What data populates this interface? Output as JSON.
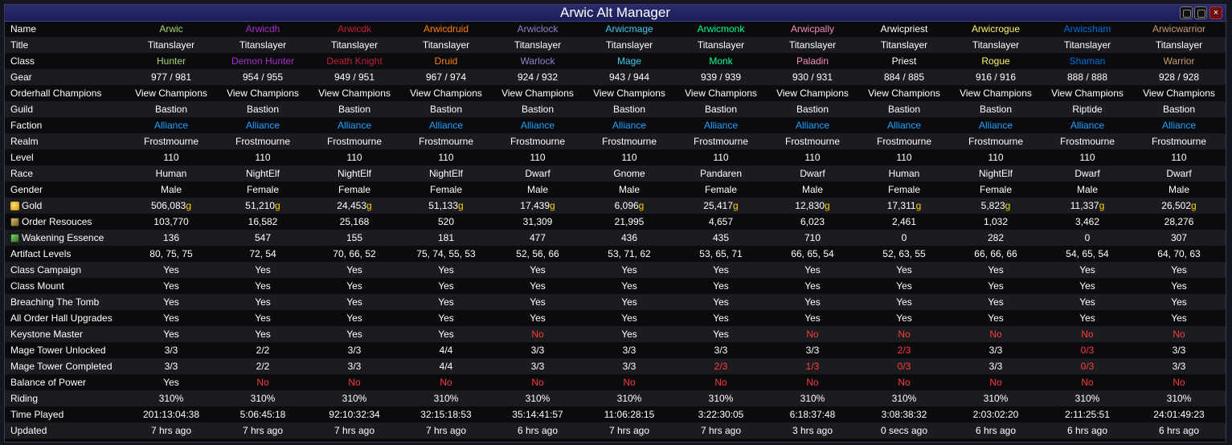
{
  "window": {
    "title": "Arwic Alt Manager",
    "close_glyph": "×"
  },
  "colors": {
    "hunter": "#abd473",
    "demonhunter": "#a330c9",
    "deathknight": "#c41f3b",
    "druid": "#ff7d0a",
    "warlock": "#9482c9",
    "mage": "#40c7eb",
    "monk": "#00ff96",
    "paladin": "#f58cba",
    "priest": "#ffffff",
    "rogue": "#fff569",
    "shaman": "#0070de",
    "warrior": "#c79c6e",
    "alliance": "#1ea2ff",
    "no": "#ff3d3d",
    "gold_suffix": "#ffd100"
  },
  "characters": [
    {
      "name": "Arwic",
      "title": "Titanslayer",
      "class": "Hunter",
      "color": "#abd473",
      "gear": "977 / 981",
      "champions": "View Champions",
      "guild": "Bastion",
      "faction": "Alliance",
      "realm": "Frostmourne",
      "level": "110",
      "race": "Human",
      "gender": "Male",
      "gold": "506,083",
      "order": "103,770",
      "essence": "136",
      "artifact": "80, 75, 75",
      "campaign": "Yes",
      "mount": "Yes",
      "tomb": "Yes",
      "upgrades": "Yes",
      "keystone": "Yes",
      "tower_unlocked": "3/3",
      "tower_completed": "3/3",
      "balance": "Yes",
      "riding": "310%",
      "played": "201:13:04:38",
      "updated": "7 hrs ago"
    },
    {
      "name": "Arwicdh",
      "title": "Titanslayer",
      "class": "Demon Hunter",
      "color": "#a330c9",
      "gear": "954 / 955",
      "champions": "View Champions",
      "guild": "Bastion",
      "faction": "Alliance",
      "realm": "Frostmourne",
      "level": "110",
      "race": "NightElf",
      "gender": "Female",
      "gold": "51,210",
      "order": "16,582",
      "essence": "547",
      "artifact": "72, 54",
      "campaign": "Yes",
      "mount": "Yes",
      "tomb": "Yes",
      "upgrades": "Yes",
      "keystone": "Yes",
      "tower_unlocked": "2/2",
      "tower_completed": "2/2",
      "balance": "No",
      "riding": "310%",
      "played": "5:06:45:18",
      "updated": "7 hrs ago"
    },
    {
      "name": "Arwicdk",
      "title": "Titanslayer",
      "class": "Death Knight",
      "color": "#c41f3b",
      "gear": "949 / 951",
      "champions": "View Champions",
      "guild": "Bastion",
      "faction": "Alliance",
      "realm": "Frostmourne",
      "level": "110",
      "race": "NightElf",
      "gender": "Female",
      "gold": "24,453",
      "order": "25,168",
      "essence": "155",
      "artifact": "70, 66, 52",
      "campaign": "Yes",
      "mount": "Yes",
      "tomb": "Yes",
      "upgrades": "Yes",
      "keystone": "Yes",
      "tower_unlocked": "3/3",
      "tower_completed": "3/3",
      "balance": "No",
      "riding": "310%",
      "played": "92:10:32:34",
      "updated": "7 hrs ago"
    },
    {
      "name": "Arwicdruid",
      "title": "Titanslayer",
      "class": "Druid",
      "color": "#ff7d0a",
      "gear": "967 / 974",
      "champions": "View Champions",
      "guild": "Bastion",
      "faction": "Alliance",
      "realm": "Frostmourne",
      "level": "110",
      "race": "NightElf",
      "gender": "Female",
      "gold": "51,133",
      "order": "520",
      "essence": "181",
      "artifact": "75, 74, 55, 53",
      "campaign": "Yes",
      "mount": "Yes",
      "tomb": "Yes",
      "upgrades": "Yes",
      "keystone": "Yes",
      "tower_unlocked": "4/4",
      "tower_completed": "4/4",
      "balance": "No",
      "riding": "310%",
      "played": "32:15:18:53",
      "updated": "7 hrs ago"
    },
    {
      "name": "Arwiclock",
      "title": "Titanslayer",
      "class": "Warlock",
      "color": "#9482c9",
      "gear": "924 / 932",
      "champions": "View Champions",
      "guild": "Bastion",
      "faction": "Alliance",
      "realm": "Frostmourne",
      "level": "110",
      "race": "Dwarf",
      "gender": "Male",
      "gold": "17,439",
      "order": "31,309",
      "essence": "477",
      "artifact": "52, 56, 66",
      "campaign": "Yes",
      "mount": "Yes",
      "tomb": "Yes",
      "upgrades": "Yes",
      "keystone": "No",
      "tower_unlocked": "3/3",
      "tower_completed": "3/3",
      "balance": "No",
      "riding": "310%",
      "played": "35:14:41:57",
      "updated": "6 hrs ago"
    },
    {
      "name": "Arwicmage",
      "title": "Titanslayer",
      "class": "Mage",
      "color": "#40c7eb",
      "gear": "943 / 944",
      "champions": "View Champions",
      "guild": "Bastion",
      "faction": "Alliance",
      "realm": "Frostmourne",
      "level": "110",
      "race": "Gnome",
      "gender": "Male",
      "gold": "6,096",
      "order": "21,995",
      "essence": "436",
      "artifact": "53, 71, 62",
      "campaign": "Yes",
      "mount": "Yes",
      "tomb": "Yes",
      "upgrades": "Yes",
      "keystone": "Yes",
      "tower_unlocked": "3/3",
      "tower_completed": "3/3",
      "balance": "No",
      "riding": "310%",
      "played": "11:06:28:15",
      "updated": "7 hrs ago"
    },
    {
      "name": "Arwicmonk",
      "title": "Titanslayer",
      "class": "Monk",
      "color": "#00ff96",
      "gear": "939 / 939",
      "champions": "View Champions",
      "guild": "Bastion",
      "faction": "Alliance",
      "realm": "Frostmourne",
      "level": "110",
      "race": "Pandaren",
      "gender": "Female",
      "gold": "25,417",
      "order": "4,657",
      "essence": "435",
      "artifact": "53, 65, 71",
      "campaign": "Yes",
      "mount": "Yes",
      "tomb": "Yes",
      "upgrades": "Yes",
      "keystone": "Yes",
      "tower_unlocked": "3/3",
      "tower_completed": "2/3",
      "balance": "No",
      "riding": "310%",
      "played": "3:22:30:05",
      "updated": "7 hrs ago"
    },
    {
      "name": "Arwicpally",
      "title": "Titanslayer",
      "class": "Paladin",
      "color": "#f58cba",
      "gear": "930 / 931",
      "champions": "View Champions",
      "guild": "Bastion",
      "faction": "Alliance",
      "realm": "Frostmourne",
      "level": "110",
      "race": "Dwarf",
      "gender": "Male",
      "gold": "12,830",
      "order": "6,023",
      "essence": "710",
      "artifact": "66, 65, 54",
      "campaign": "Yes",
      "mount": "Yes",
      "tomb": "Yes",
      "upgrades": "Yes",
      "keystone": "No",
      "tower_unlocked": "3/3",
      "tower_completed": "1/3",
      "balance": "No",
      "riding": "310%",
      "played": "6:18:37:48",
      "updated": "3 hrs ago"
    },
    {
      "name": "Arwicpriest",
      "title": "Titanslayer",
      "class": "Priest",
      "color": "#ffffff",
      "gear": "884 / 885",
      "champions": "View Champions",
      "guild": "Bastion",
      "faction": "Alliance",
      "realm": "Frostmourne",
      "level": "110",
      "race": "Human",
      "gender": "Female",
      "gold": "17,311",
      "order": "2,461",
      "essence": "0",
      "artifact": "52, 63, 55",
      "campaign": "Yes",
      "mount": "Yes",
      "tomb": "Yes",
      "upgrades": "Yes",
      "keystone": "No",
      "tower_unlocked": "2/3",
      "tower_completed": "0/3",
      "balance": "No",
      "riding": "310%",
      "played": "3:08:38:32",
      "updated": "0 secs ago"
    },
    {
      "name": "Arwicrogue",
      "title": "Titanslayer",
      "class": "Rogue",
      "color": "#fff569",
      "gear": "916 / 916",
      "champions": "View Champions",
      "guild": "Bastion",
      "faction": "Alliance",
      "realm": "Frostmourne",
      "level": "110",
      "race": "NightElf",
      "gender": "Female",
      "gold": "5,823",
      "order": "1,032",
      "essence": "282",
      "artifact": "66, 66, 66",
      "campaign": "Yes",
      "mount": "Yes",
      "tomb": "Yes",
      "upgrades": "Yes",
      "keystone": "No",
      "tower_unlocked": "3/3",
      "tower_completed": "3/3",
      "balance": "No",
      "riding": "310%",
      "played": "2:03:02:20",
      "updated": "6 hrs ago"
    },
    {
      "name": "Arwicsham",
      "title": "Titanslayer",
      "class": "Shaman",
      "color": "#0070de",
      "gear": "888 / 888",
      "champions": "View Champions",
      "guild": "Riptide",
      "faction": "Alliance",
      "realm": "Frostmourne",
      "level": "110",
      "race": "Dwarf",
      "gender": "Male",
      "gold": "11,337",
      "order": "3,462",
      "essence": "0",
      "artifact": "54, 65, 54",
      "campaign": "Yes",
      "mount": "Yes",
      "tomb": "Yes",
      "upgrades": "Yes",
      "keystone": "No",
      "tower_unlocked": "0/3",
      "tower_completed": "0/3",
      "balance": "No",
      "riding": "310%",
      "played": "2:11:25:51",
      "updated": "6 hrs ago"
    },
    {
      "name": "Arwicwarrior",
      "title": "Titanslayer",
      "class": "Warrior",
      "color": "#c79c6e",
      "gear": "928 / 928",
      "champions": "View Champions",
      "guild": "Bastion",
      "faction": "Alliance",
      "realm": "Frostmourne",
      "level": "110",
      "race": "Dwarf",
      "gender": "Male",
      "gold": "26,502",
      "order": "28,276",
      "essence": "307",
      "artifact": "64, 70, 63",
      "campaign": "Yes",
      "mount": "Yes",
      "tomb": "Yes",
      "upgrades": "Yes",
      "keystone": "No",
      "tower_unlocked": "3/3",
      "tower_completed": "3/3",
      "balance": "No",
      "riding": "310%",
      "played": "24:01:49:23",
      "updated": "6 hrs ago"
    }
  ],
  "rows": [
    {
      "key": "name",
      "label": "Name"
    },
    {
      "key": "title",
      "label": "Title"
    },
    {
      "key": "class",
      "label": "Class"
    },
    {
      "key": "gear",
      "label": "Gear"
    },
    {
      "key": "champions",
      "label": "Orderhall Champions"
    },
    {
      "key": "guild",
      "label": "Guild"
    },
    {
      "key": "faction",
      "label": "Faction"
    },
    {
      "key": "realm",
      "label": "Realm"
    },
    {
      "key": "level",
      "label": "Level"
    },
    {
      "key": "race",
      "label": "Race"
    },
    {
      "key": "gender",
      "label": "Gender"
    },
    {
      "key": "gold",
      "label": "Gold",
      "icon": "gold-coin-icon",
      "gold_suffix": "g"
    },
    {
      "key": "order",
      "label": "Order Resouces",
      "icon": "order-resources-icon"
    },
    {
      "key": "essence",
      "label": "Wakening Essence",
      "icon": "wakening-essence-icon"
    },
    {
      "key": "artifact",
      "label": "Artifact Levels"
    },
    {
      "key": "campaign",
      "label": "Class Campaign"
    },
    {
      "key": "mount",
      "label": "Class Mount"
    },
    {
      "key": "tomb",
      "label": "Breaching The Tomb"
    },
    {
      "key": "upgrades",
      "label": "All Order Hall Upgrades"
    },
    {
      "key": "keystone",
      "label": "Keystone Master"
    },
    {
      "key": "tower_unlocked",
      "label": "Mage Tower Unlocked"
    },
    {
      "key": "tower_completed",
      "label": "Mage Tower Completed"
    },
    {
      "key": "balance",
      "label": "Balance of Power"
    },
    {
      "key": "riding",
      "label": "Riding"
    },
    {
      "key": "played",
      "label": "Time Played"
    },
    {
      "key": "updated",
      "label": "Updated"
    }
  ]
}
